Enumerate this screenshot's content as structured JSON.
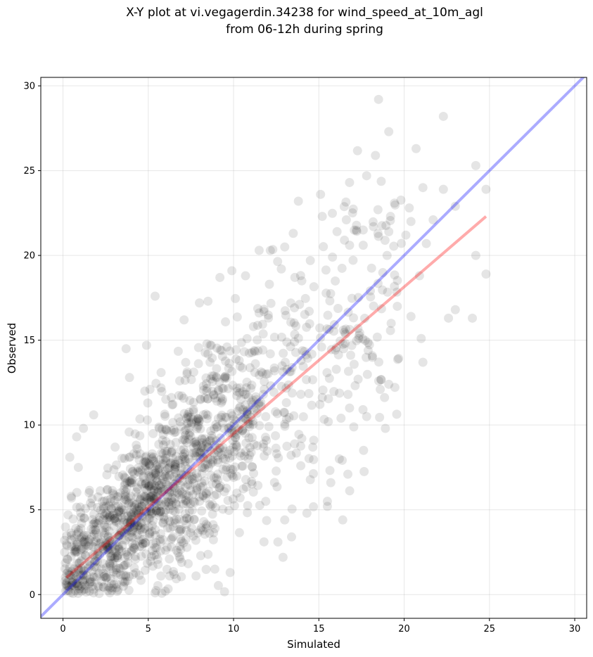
{
  "chart_data": {
    "type": "scatter",
    "title_lines": [
      "X-Y plot at vi.vegagerdin.34238 for wind_speed_at_10m_agl",
      "from 06-12h during spring"
    ],
    "xlabel": "Simulated",
    "ylabel": "Observed",
    "xlim": [
      -1.3,
      30.7
    ],
    "ylim": [
      -1.4,
      30.5
    ],
    "xticks": [
      0,
      5,
      10,
      15,
      20,
      25,
      30
    ],
    "yticks": [
      0,
      5,
      10,
      15,
      20,
      25,
      30
    ],
    "grid": true,
    "point_color": "#000000",
    "point_alpha": 0.1,
    "point_count": 1600,
    "identity_line": {
      "x": [
        -1.3,
        30.7
      ],
      "y": [
        -1.3,
        30.7
      ],
      "color": "#0000ff",
      "alpha": 0.33
    },
    "fit_line": {
      "x": [
        0.2,
        24.8
      ],
      "y": [
        1.0,
        22.3
      ],
      "color": "#ff0000",
      "alpha": 0.33
    },
    "highlight_points": [
      {
        "x": 18.5,
        "y": 29.2
      },
      {
        "x": 22.3,
        "y": 28.2
      },
      {
        "x": 19.1,
        "y": 27.3
      },
      {
        "x": 20.7,
        "y": 26.3
      },
      {
        "x": 24.2,
        "y": 25.3
      },
      {
        "x": 17.8,
        "y": 24.7
      },
      {
        "x": 16.8,
        "y": 24.3
      },
      {
        "x": 21.1,
        "y": 24.0
      },
      {
        "x": 22.3,
        "y": 23.9
      },
      {
        "x": 24.8,
        "y": 23.9
      },
      {
        "x": 15.1,
        "y": 23.6
      },
      {
        "x": 13.8,
        "y": 23.2
      },
      {
        "x": 23.0,
        "y": 22.9
      },
      {
        "x": 20.3,
        "y": 22.8
      },
      {
        "x": 15.2,
        "y": 22.3
      },
      {
        "x": 19.2,
        "y": 22.3
      },
      {
        "x": 21.7,
        "y": 22.1
      },
      {
        "x": 20.4,
        "y": 22.0
      },
      {
        "x": 18.2,
        "y": 21.7
      },
      {
        "x": 17.6,
        "y": 21.5
      },
      {
        "x": 19.1,
        "y": 21.4
      },
      {
        "x": 13.5,
        "y": 21.3
      },
      {
        "x": 20.1,
        "y": 21.2
      },
      {
        "x": 16.5,
        "y": 20.9
      },
      {
        "x": 21.3,
        "y": 20.7
      },
      {
        "x": 16.8,
        "y": 20.6
      },
      {
        "x": 17.6,
        "y": 20.6
      },
      {
        "x": 13.0,
        "y": 20.5
      },
      {
        "x": 11.5,
        "y": 20.3
      },
      {
        "x": 19.0,
        "y": 20.0
      },
      {
        "x": 24.2,
        "y": 20.0
      },
      {
        "x": 15.8,
        "y": 19.9
      },
      {
        "x": 14.5,
        "y": 19.7
      },
      {
        "x": 12.8,
        "y": 19.2
      },
      {
        "x": 9.9,
        "y": 19.1
      },
      {
        "x": 24.8,
        "y": 18.9
      },
      {
        "x": 9.2,
        "y": 18.7
      },
      {
        "x": 10.7,
        "y": 18.8
      },
      {
        "x": 20.9,
        "y": 18.8
      },
      {
        "x": 12.1,
        "y": 18.3
      },
      {
        "x": 14.0,
        "y": 18.5
      },
      {
        "x": 8.5,
        "y": 17.3
      },
      {
        "x": 8.0,
        "y": 17.2
      },
      {
        "x": 5.4,
        "y": 17.6
      },
      {
        "x": 7.1,
        "y": 16.2
      },
      {
        "x": 3.7,
        "y": 14.5
      },
      {
        "x": 4.9,
        "y": 14.7
      },
      {
        "x": 3.9,
        "y": 12.8
      },
      {
        "x": 4.8,
        "y": 12.0
      },
      {
        "x": 5.1,
        "y": 12.1
      },
      {
        "x": 1.8,
        "y": 10.6
      },
      {
        "x": 1.2,
        "y": 9.8
      },
      {
        "x": 0.8,
        "y": 9.3
      },
      {
        "x": 0.4,
        "y": 8.1
      },
      {
        "x": 0.9,
        "y": 7.5
      },
      {
        "x": 0.5,
        "y": 5.7
      },
      {
        "x": 0.3,
        "y": 4.7
      },
      {
        "x": 0.1,
        "y": 3.2
      },
      {
        "x": 0.1,
        "y": 2.5
      },
      {
        "x": 24.0,
        "y": 16.3
      },
      {
        "x": 23.0,
        "y": 16.8
      },
      {
        "x": 22.6,
        "y": 16.3
      },
      {
        "x": 21.0,
        "y": 15.1
      },
      {
        "x": 21.1,
        "y": 13.7
      },
      {
        "x": 20.4,
        "y": 16.4
      },
      {
        "x": 19.6,
        "y": 17.0
      },
      {
        "x": 19.1,
        "y": 12.4
      },
      {
        "x": 18.6,
        "y": 12.1
      },
      {
        "x": 18.9,
        "y": 9.8
      },
      {
        "x": 17.8,
        "y": 10.5
      },
      {
        "x": 17.3,
        "y": 12.7
      },
      {
        "x": 16.8,
        "y": 11.0
      },
      {
        "x": 16.3,
        "y": 10.4
      },
      {
        "x": 16.2,
        "y": 8.0
      },
      {
        "x": 15.7,
        "y": 6.6
      },
      {
        "x": 16.4,
        "y": 4.4
      },
      {
        "x": 15.5,
        "y": 5.2
      },
      {
        "x": 14.3,
        "y": 4.8
      },
      {
        "x": 13.4,
        "y": 3.4
      },
      {
        "x": 12.9,
        "y": 2.2
      },
      {
        "x": 12.6,
        "y": 3.1
      },
      {
        "x": 13.0,
        "y": 4.4
      },
      {
        "x": 9.8,
        "y": 1.3
      },
      {
        "x": 8.9,
        "y": 1.5
      },
      {
        "x": 7.8,
        "y": 1.1
      },
      {
        "x": 6.0,
        "y": 0.2
      },
      {
        "x": 5.4,
        "y": 0.1
      },
      {
        "x": 2.9,
        "y": 0.4
      },
      {
        "x": 1.8,
        "y": 0.3
      },
      {
        "x": 16.7,
        "y": 7.1
      },
      {
        "x": 15.5,
        "y": 5.5
      },
      {
        "x": 14.7,
        "y": 9.1
      }
    ]
  }
}
